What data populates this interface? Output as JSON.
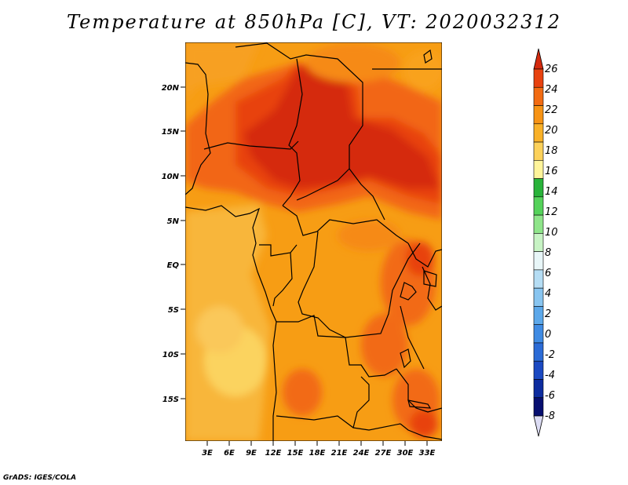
{
  "title": "Temperature at 850hPa [C], VT: 2020032312",
  "credit": "GrADS: IGES/COLA",
  "map": {
    "variable": "Temperature at 850hPa",
    "units": "C",
    "valid_time": "2020032312",
    "lat_ticks": [
      "20N",
      "15N",
      "10N",
      "5N",
      "EQ",
      "5S",
      "10S",
      "15S"
    ],
    "lon_ticks": [
      "3E",
      "6E",
      "9E",
      "12E",
      "15E",
      "18E",
      "21E",
      "24E",
      "27E",
      "30E",
      "33E"
    ]
  },
  "colorbar": {
    "labels": [
      "26",
      "24",
      "22",
      "20",
      "18",
      "16",
      "14",
      "12",
      "10",
      "8",
      "6",
      "4",
      "2",
      "0",
      "-2",
      "-4",
      "-6",
      "-8"
    ],
    "colors": [
      "#d42a0e",
      "#e8420f",
      "#f26b12",
      "#f79314",
      "#f9b128",
      "#fcd15a",
      "#fff49a",
      "#29b33a",
      "#55d25a",
      "#8fe58a",
      "#c7f3c4",
      "#e8f6f8",
      "#b5ddf4",
      "#88c5f0",
      "#5ca8ea",
      "#3f8be3",
      "#2b6bd6",
      "#1b49c2",
      "#0d2c9f",
      "#070f70",
      "#dcdcf4"
    ]
  }
}
